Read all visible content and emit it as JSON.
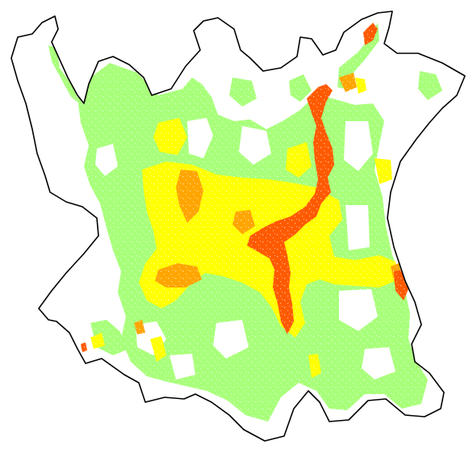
{
  "map": {
    "kind": "hazard-zonation-raster",
    "colors": {
      "background": "#ffffff",
      "boundary": "#000000",
      "low": "#a8ff7a",
      "moderate": "#ffff00",
      "high": "#ffa500",
      "very_high": "#ff5a00"
    },
    "classes": [
      {
        "key": "low",
        "color": "#a8ff7a"
      },
      {
        "key": "moderate",
        "color": "#ffff00"
      },
      {
        "key": "high",
        "color": "#ffa500"
      },
      {
        "key": "very_high",
        "color": "#ff5a00"
      }
    ],
    "legend_visible": false,
    "title_visible": false
  }
}
